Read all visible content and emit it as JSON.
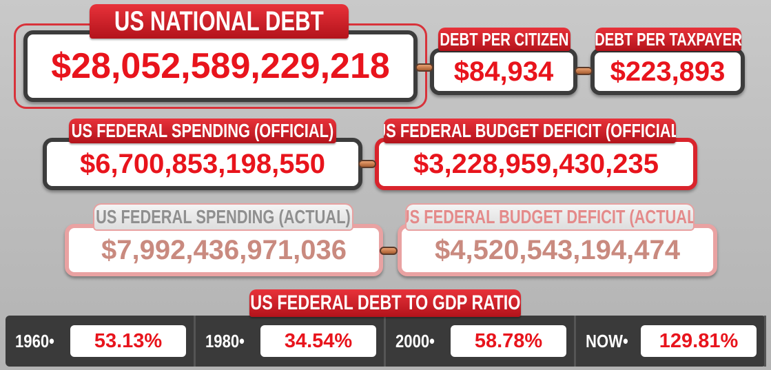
{
  "national_debt": {
    "title": "US NATIONAL DEBT",
    "value": "$28,052,589,229,218"
  },
  "debt_per_citizen": {
    "title": "DEBT PER CITIZEN",
    "value": "$84,934"
  },
  "debt_per_taxpayer": {
    "title": "DEBT PER TAXPAYER",
    "value": "$223,893"
  },
  "spending_official": {
    "title": "US FEDERAL SPENDING (OFFICIAL)",
    "value": "$6,700,853,198,550"
  },
  "deficit_official": {
    "title": "US FEDERAL BUDGET DEFICIT (OFFICIAL)",
    "value": "$3,228,959,430,235"
  },
  "spending_actual": {
    "title": "US FEDERAL SPENDING (ACTUAL)",
    "value": "$7,992,436,971,036"
  },
  "deficit_actual": {
    "title": "US FEDERAL BUDGET DEFICIT (ACTUAL)",
    "value": "$4,520,543,194,474"
  },
  "debt_to_gdp": {
    "title": "US FEDERAL DEBT TO GDP RATIO",
    "items": [
      {
        "label": "1960•",
        "value": "53.13%"
      },
      {
        "label": "1980•",
        "value": "34.54%"
      },
      {
        "label": "2000•",
        "value": "58.78%"
      },
      {
        "label": "NOW•",
        "value": "129.81%"
      }
    ]
  }
}
